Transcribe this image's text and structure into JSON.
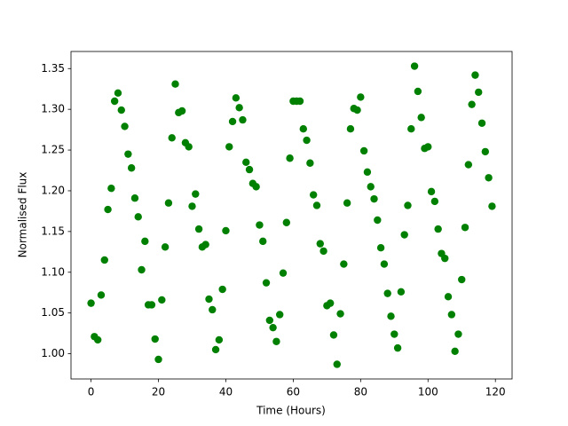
{
  "chart_data": {
    "type": "scatter",
    "xlabel": "Time (Hours)",
    "ylabel": "Normalised Flux",
    "color": "#008000",
    "x": [
      0,
      1,
      2,
      3,
      4,
      5,
      6,
      7,
      8,
      9,
      10,
      11,
      12,
      13,
      14,
      15,
      16,
      17,
      18,
      19,
      20,
      21,
      22,
      23,
      24,
      25,
      26,
      27,
      28,
      29,
      30,
      31,
      32,
      33,
      34,
      35,
      36,
      37,
      38,
      39,
      40,
      41,
      42,
      43,
      44,
      45,
      46,
      47,
      48,
      49,
      50,
      51,
      52,
      53,
      54,
      55,
      56,
      57,
      58,
      59,
      60,
      61,
      62,
      63,
      64,
      65,
      66,
      67,
      68,
      69,
      70,
      71,
      72,
      73,
      74,
      75,
      76,
      77,
      78,
      79,
      80,
      81,
      82,
      83,
      84,
      85,
      86,
      87,
      88,
      89,
      90,
      91,
      92,
      93,
      94,
      95,
      96,
      97,
      98,
      99,
      100,
      101,
      102,
      103,
      104,
      105,
      106,
      107,
      108,
      109,
      110,
      111,
      112,
      113,
      114,
      115,
      116,
      117,
      118,
      119
    ],
    "values": [
      1.062,
      1.021,
      1.017,
      1.072,
      1.115,
      1.177,
      1.203,
      1.31,
      1.32,
      1.299,
      1.279,
      1.245,
      1.228,
      1.191,
      1.168,
      1.103,
      1.138,
      1.06,
      1.06,
      1.018,
      0.993,
      1.066,
      1.131,
      1.185,
      1.265,
      1.331,
      1.296,
      1.298,
      1.259,
      1.254,
      1.181,
      1.196,
      1.153,
      1.131,
      1.134,
      1.067,
      1.054,
      1.005,
      1.017,
      1.079,
      1.151,
      1.254,
      1.285,
      1.314,
      1.302,
      1.287,
      1.235,
      1.226,
      1.209,
      1.205,
      1.158,
      1.138,
      1.087,
      1.041,
      1.032,
      1.015,
      1.048,
      1.099,
      1.161,
      1.24,
      1.31,
      1.31,
      1.31,
      1.276,
      1.262,
      1.234,
      1.195,
      1.182,
      1.135,
      1.126,
      1.059,
      1.062,
      1.023,
      0.987,
      1.049,
      1.11,
      1.185,
      1.276,
      1.301,
      1.299,
      1.315,
      1.249,
      1.223,
      1.205,
      1.19,
      1.164,
      1.13,
      1.11,
      1.074,
      1.046,
      1.024,
      1.007,
      1.076,
      1.146,
      1.182,
      1.276,
      1.353,
      1.322,
      1.29,
      1.252,
      1.254,
      1.199,
      1.187,
      1.153,
      1.123,
      1.117,
      1.07,
      1.048,
      1.003,
      1.024,
      1.091,
      1.155,
      1.232,
      1.306,
      1.342,
      1.321,
      1.283,
      1.248,
      1.216,
      1.181
    ],
    "xlim": [
      -5.95,
      124.95
    ],
    "ylim": [
      0.969,
      1.371
    ],
    "xticks": [
      0,
      20,
      40,
      60,
      80,
      100,
      120
    ],
    "yticks": [
      {
        "value": 1.0,
        "label": "1.00"
      },
      {
        "value": 1.05,
        "label": "1.05"
      },
      {
        "value": 1.1,
        "label": "1.10"
      },
      {
        "value": 1.15,
        "label": "1.15"
      },
      {
        "value": 1.2,
        "label": "1.20"
      },
      {
        "value": 1.25,
        "label": "1.25"
      },
      {
        "value": 1.3,
        "label": "1.30"
      },
      {
        "value": 1.35,
        "label": "1.35"
      }
    ]
  }
}
